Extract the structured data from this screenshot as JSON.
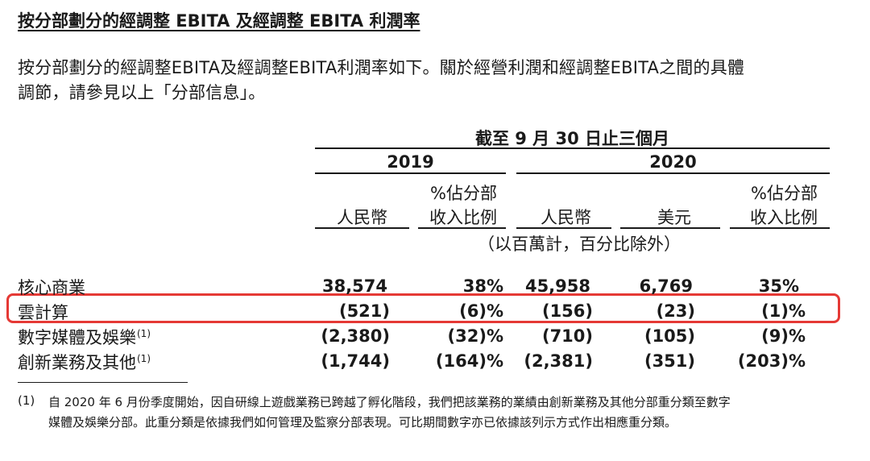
{
  "title": "按分部劃分的經調整 EBITA 及經調整 EBITA 利潤率",
  "intro_lines": [
    "按分部劃分的經調整EBITA及經調整EBITA利潤率如下。關於經營利潤和經調整EBITA之間的具體",
    "調節，請參見以上「分部信息」。"
  ],
  "table": {
    "period": "截至 9 月 30 日止三個月",
    "years": [
      "2019",
      "2020"
    ],
    "columns": [
      "人民幣",
      "%佔分部收入比例",
      "人民幣",
      "美元",
      "%佔分部收入比例"
    ],
    "col_line1": [
      "",
      "%佔分部",
      "",
      "",
      "%佔分部"
    ],
    "col_line2": [
      "人民幣",
      "收入比例",
      "人民幣",
      "美元",
      "收入比例"
    ],
    "unit_note": "（以百萬計，百分比除外）",
    "rows": [
      {
        "label": "核心商業",
        "note": "",
        "values": [
          "38,574",
          "38%",
          "45,958",
          "6,769",
          "35%"
        ]
      },
      {
        "label": "雲計算",
        "note": "",
        "values": [
          "(521)",
          "(6)%",
          "(156)",
          "(23)",
          "(1)%"
        ]
      },
      {
        "label": "數字媒體及娛樂",
        "note": "(1)",
        "values": [
          "(2,380)",
          "(32)%",
          "(710)",
          "(105)",
          "(9)%"
        ]
      },
      {
        "label": "創新業務及其他",
        "note": "(1)",
        "values": [
          "(1,744)",
          "(164)%",
          "(2,381)",
          "(351)",
          "(203)%"
        ]
      }
    ]
  },
  "footnote": {
    "marker": "(1)",
    "lines": [
      "自 2020 年 6 月份季度開始，因自研線上遊戲業務已跨越了孵化階段，我們把該業務的業績由創新業務及其他分部重分類至數字",
      "媒體及娛樂分部。此重分類是依據我們如何管理及監察分部表現。可比期間數字亦已依據該列示方式作出相應重分類。"
    ]
  },
  "highlight_color": "#e53935"
}
